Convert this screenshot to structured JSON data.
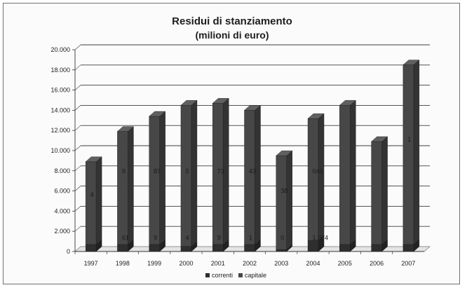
{
  "chart_data": {
    "type": "bar",
    "title": "Residui di stanziamento",
    "subtitle": "(milioni di euro)",
    "categories": [
      "1997",
      "1998",
      "1999",
      "2000",
      "2001",
      "2002",
      "2003",
      "2004",
      "2005",
      "2006",
      "2007"
    ],
    "series": [
      {
        "name": "correnti",
        "values": [
          700,
          700,
          700,
          500,
          700,
          700,
          200,
          1074,
          700,
          700,
          700
        ]
      },
      {
        "name": "capitale",
        "values": [
          8200,
          11200,
          12700,
          14000,
          14000,
          13300,
          9300,
          12100,
          13800,
          10200,
          17800
        ]
      }
    ],
    "ylim": [
      0,
      20000
    ],
    "y_ticks": [
      "0",
      "2.000",
      "4.000",
      "6.000",
      "8.000",
      "10.000",
      "12.000",
      "14.000",
      "16.000",
      "18.000",
      "20.000"
    ],
    "legend_position": "bottom",
    "grid": true,
    "chart_style": "3d-stacked-column",
    "data_labels": [
      {
        "category": "1997",
        "text": "4"
      },
      {
        "category": "1998",
        "text": "61"
      },
      {
        "category": "1998",
        "text": "9"
      },
      {
        "category": "1999",
        "text": "9"
      },
      {
        "category": "1999",
        "text": "87"
      },
      {
        "category": "2000",
        "text": "4"
      },
      {
        "category": "2000",
        "text": "5"
      },
      {
        "category": "2001",
        "text": "9"
      },
      {
        "category": "2001",
        "text": "73"
      },
      {
        "category": "2002",
        "text": "1"
      },
      {
        "category": "2002",
        "text": "43"
      },
      {
        "category": "2003",
        "text": "0"
      },
      {
        "category": "2003",
        "text": "38"
      },
      {
        "category": "2004",
        "text": "1.074"
      },
      {
        "category": "2004",
        "text": "040"
      },
      {
        "category": "2007",
        "text": "1"
      }
    ],
    "colors": {
      "correnti_front": "#2e2e2e",
      "capitale_front": "#474747",
      "gridline": "#3c3c3c",
      "background": "#fbfbfb"
    }
  }
}
